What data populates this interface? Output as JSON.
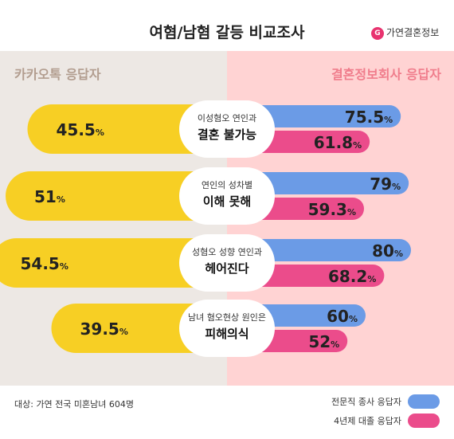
{
  "title": "여혐/남혐 갈등 비교조사",
  "logo": {
    "text": "가연결혼정보"
  },
  "left_header": "카카오톡 응답자",
  "right_header": "결혼정보회사 응답자",
  "footnote": "대상: 가연 전국 미혼남녀 604명",
  "colors": {
    "left": "#f7cf24",
    "right_a": "#6b9be6",
    "right_b": "#eb4c8b"
  },
  "chart_data": {
    "type": "bar",
    "categories": [
      {
        "sub": "이성혐오 연인과",
        "main": "결혼 불가능"
      },
      {
        "sub": "연인의 성차별",
        "main": "이해 못해"
      },
      {
        "sub": "성혐오 성향 연인과",
        "main": "헤어진다"
      },
      {
        "sub": "남녀 혐오현상 원인은",
        "main": "피해의식"
      }
    ],
    "unit": "%",
    "series": [
      {
        "name": "카카오톡 응답자",
        "values": [
          45.5,
          51,
          54.5,
          39.5
        ]
      },
      {
        "name": "전문직 종사 응답자",
        "values": [
          75.5,
          79,
          80,
          60
        ]
      },
      {
        "name": "4년제 대졸 응답자",
        "values": [
          61.8,
          59.3,
          68.2,
          52
        ]
      }
    ],
    "value_labels": {
      "left": [
        "45.5",
        "51",
        "54.5",
        "39.5"
      ],
      "right_a": [
        "75.5",
        "79",
        "80",
        "60"
      ],
      "right_b": [
        "61.8",
        "59.3",
        "68.2",
        "52"
      ]
    },
    "legend": [
      "전문직 종사 응답자",
      "4년제 대졸 응답자"
    ]
  }
}
